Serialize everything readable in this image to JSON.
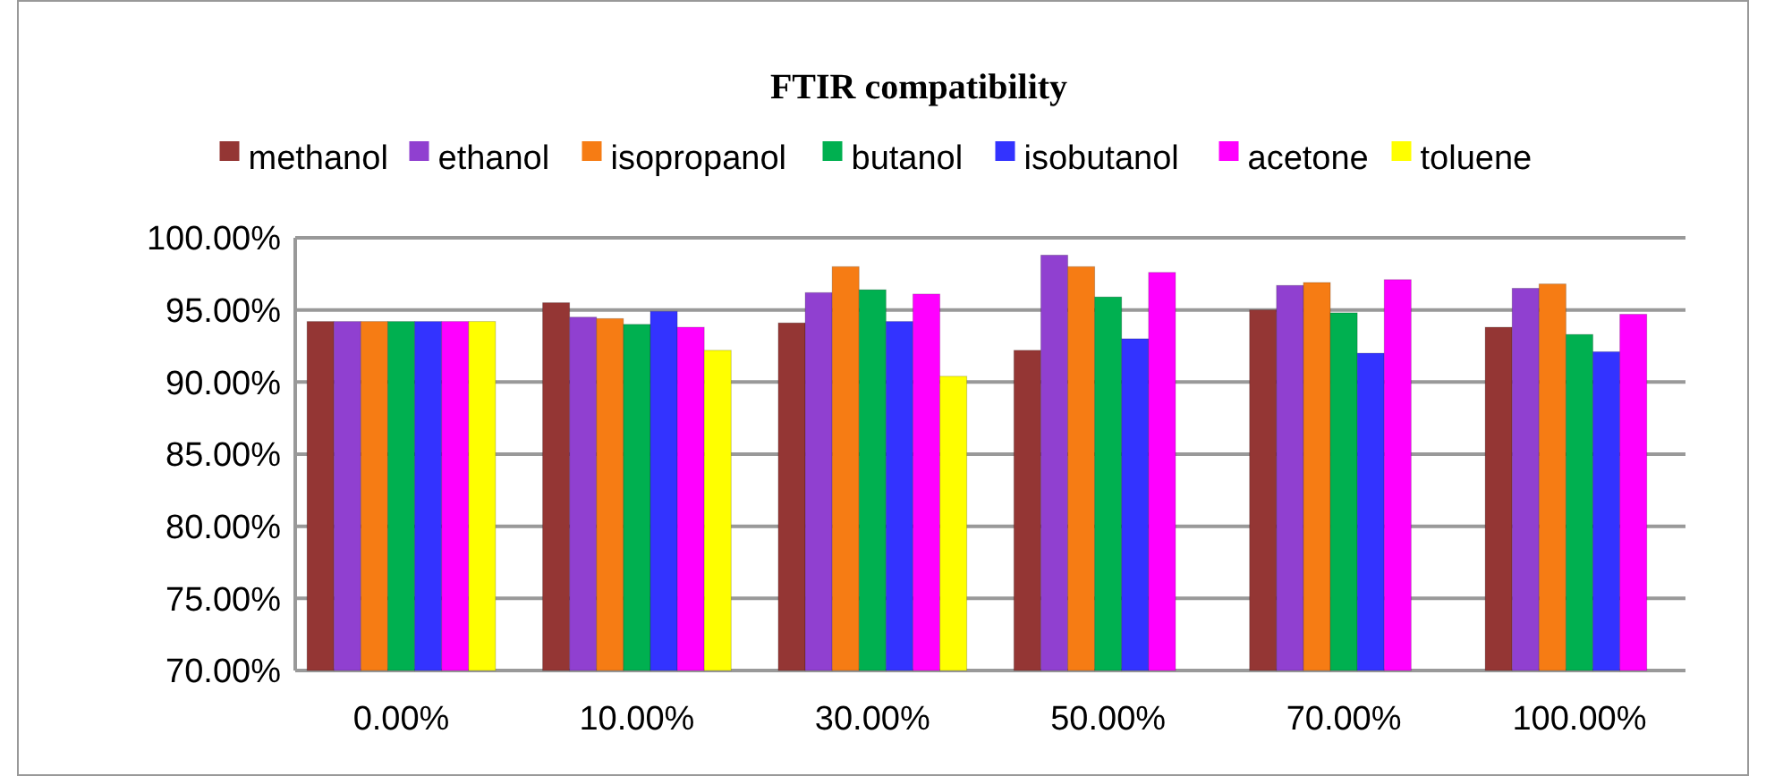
{
  "chart_data": {
    "type": "bar",
    "title": "FTIR compatibility",
    "categories": [
      "0.00%",
      "10.00%",
      "30.00%",
      "50.00%",
      "70.00%",
      "100.00%"
    ],
    "series": [
      {
        "name": "methanol",
        "color": "#943634",
        "values": [
          94.2,
          95.5,
          94.1,
          92.2,
          95.0,
          93.8
        ]
      },
      {
        "name": "ethanol",
        "color": "#9040d0",
        "values": [
          94.2,
          94.5,
          96.2,
          98.8,
          96.7,
          96.5
        ]
      },
      {
        "name": "isopropanol",
        "color": "#f67c14",
        "values": [
          94.2,
          94.4,
          98.0,
          98.0,
          96.9,
          96.8
        ]
      },
      {
        "name": "butanol",
        "color": "#00b050",
        "values": [
          94.2,
          94.0,
          96.4,
          95.9,
          94.8,
          93.3
        ]
      },
      {
        "name": "isobutanol",
        "color": "#3333ff",
        "values": [
          94.2,
          94.9,
          94.2,
          93.0,
          92.0,
          92.1
        ]
      },
      {
        "name": "acetone",
        "color": "#ff00ff",
        "values": [
          94.2,
          93.8,
          96.1,
          97.6,
          97.1,
          94.7
        ]
      },
      {
        "name": "toluene",
        "color": "#ffff00",
        "values": [
          94.2,
          92.2,
          90.4,
          70,
          70,
          70
        ]
      }
    ],
    "ylim": [
      70,
      100
    ],
    "yticks": [
      {
        "value": 70,
        "label": "70.00%"
      },
      {
        "value": 75,
        "label": "75.00%"
      },
      {
        "value": 80,
        "label": "80.00%"
      },
      {
        "value": 85,
        "label": "85.00%"
      },
      {
        "value": 90,
        "label": "90.00%"
      },
      {
        "value": 95,
        "label": "95.00%"
      },
      {
        "value": 100,
        "label": "100.00%"
      }
    ],
    "grid": "y",
    "legend": "top"
  }
}
